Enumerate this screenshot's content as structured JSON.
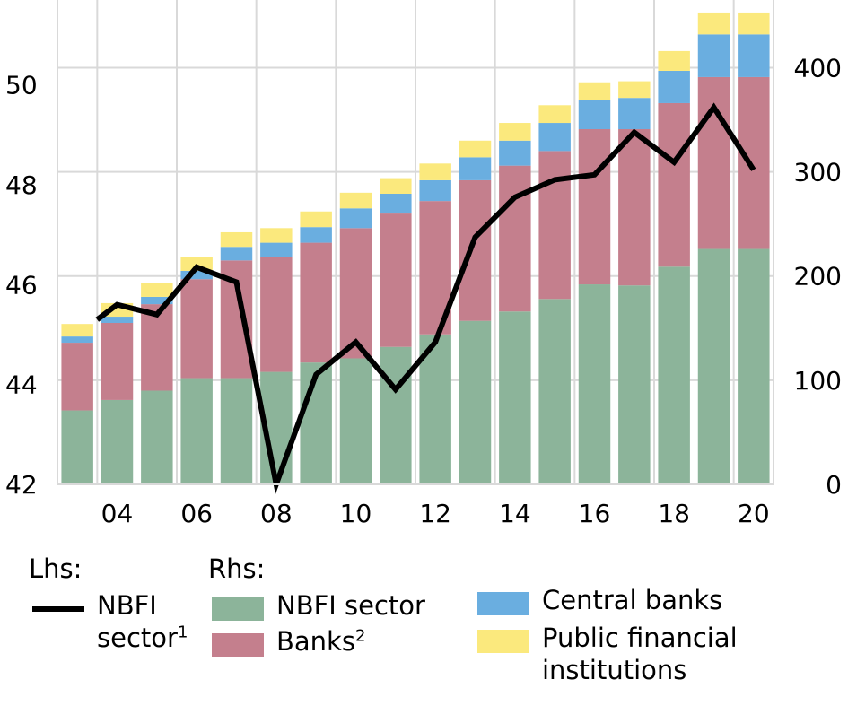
{
  "chart_data": {
    "type": "bar",
    "stacked": true,
    "categories": [
      "03",
      "04",
      "05",
      "06",
      "07",
      "08",
      "09",
      "10",
      "11",
      "12",
      "13",
      "14",
      "15",
      "16",
      "17",
      "18",
      "19",
      "20"
    ],
    "x_tick_labels": [
      "04",
      "06",
      "08",
      "10",
      "12",
      "14",
      "16",
      "18",
      "20"
    ],
    "y_left": {
      "ylim": [
        42,
        51.7
      ],
      "ticks": [
        "42",
        "44",
        "46",
        "48",
        "50"
      ]
    },
    "y_right": {
      "ylim": [
        0,
        465
      ],
      "ticks": [
        "0",
        "100",
        "200",
        "300",
        "400"
      ]
    },
    "grid": true,
    "series": [
      {
        "name": "NBFI sector",
        "axis": "right",
        "color": "#8cb49a",
        "values": [
          71,
          81,
          90,
          102,
          102,
          108,
          117,
          121,
          132,
          144,
          157,
          166,
          178,
          192,
          191,
          209,
          226,
          226
        ]
      },
      {
        "name": "Banks",
        "axis": "right",
        "color": "#c47f8d",
        "values": [
          65,
          74,
          83,
          95,
          113,
          110,
          115,
          125,
          128,
          128,
          135,
          140,
          142,
          149,
          150,
          157,
          165,
          165
        ]
      },
      {
        "name": "Central banks",
        "axis": "right",
        "color": "#6aaee0",
        "values": [
          6,
          6,
          7,
          8,
          13,
          14,
          15,
          19,
          19,
          20,
          22,
          24,
          27,
          28,
          30,
          31,
          41,
          41
        ]
      },
      {
        "name": "Public financial institutions",
        "axis": "right",
        "color": "#fbe97d",
        "values": [
          12,
          13,
          13,
          13,
          14,
          14,
          15,
          15,
          15,
          16,
          16,
          17,
          17,
          17,
          16,
          19,
          21,
          21
        ]
      }
    ],
    "line": {
      "name": "NBFI sector",
      "axis": "left",
      "color": "#000000",
      "x": [
        2003.5,
        2004,
        2005,
        2006,
        2007,
        2008,
        2009,
        2010,
        2011,
        2012,
        2013,
        2014,
        2015,
        2016,
        2017,
        2018,
        2019,
        2020
      ],
      "values": [
        45.3,
        45.6,
        45.4,
        46.35,
        46.05,
        42,
        44.2,
        44.85,
        43.9,
        44.85,
        46.95,
        47.75,
        48.1,
        48.2,
        49.05,
        48.45,
        49.55,
        48.3
      ]
    }
  },
  "legend": {
    "lhs_label": "Lhs:",
    "rhs_label": "Rhs:",
    "line_label": "NBFI\nsector",
    "line_sup": "1",
    "nbfi_label": "NBFI sector",
    "banks_label": "Banks",
    "banks_sup": "2",
    "central_label": "Central banks",
    "pfi_label": "Public financial\ninstitutions"
  }
}
